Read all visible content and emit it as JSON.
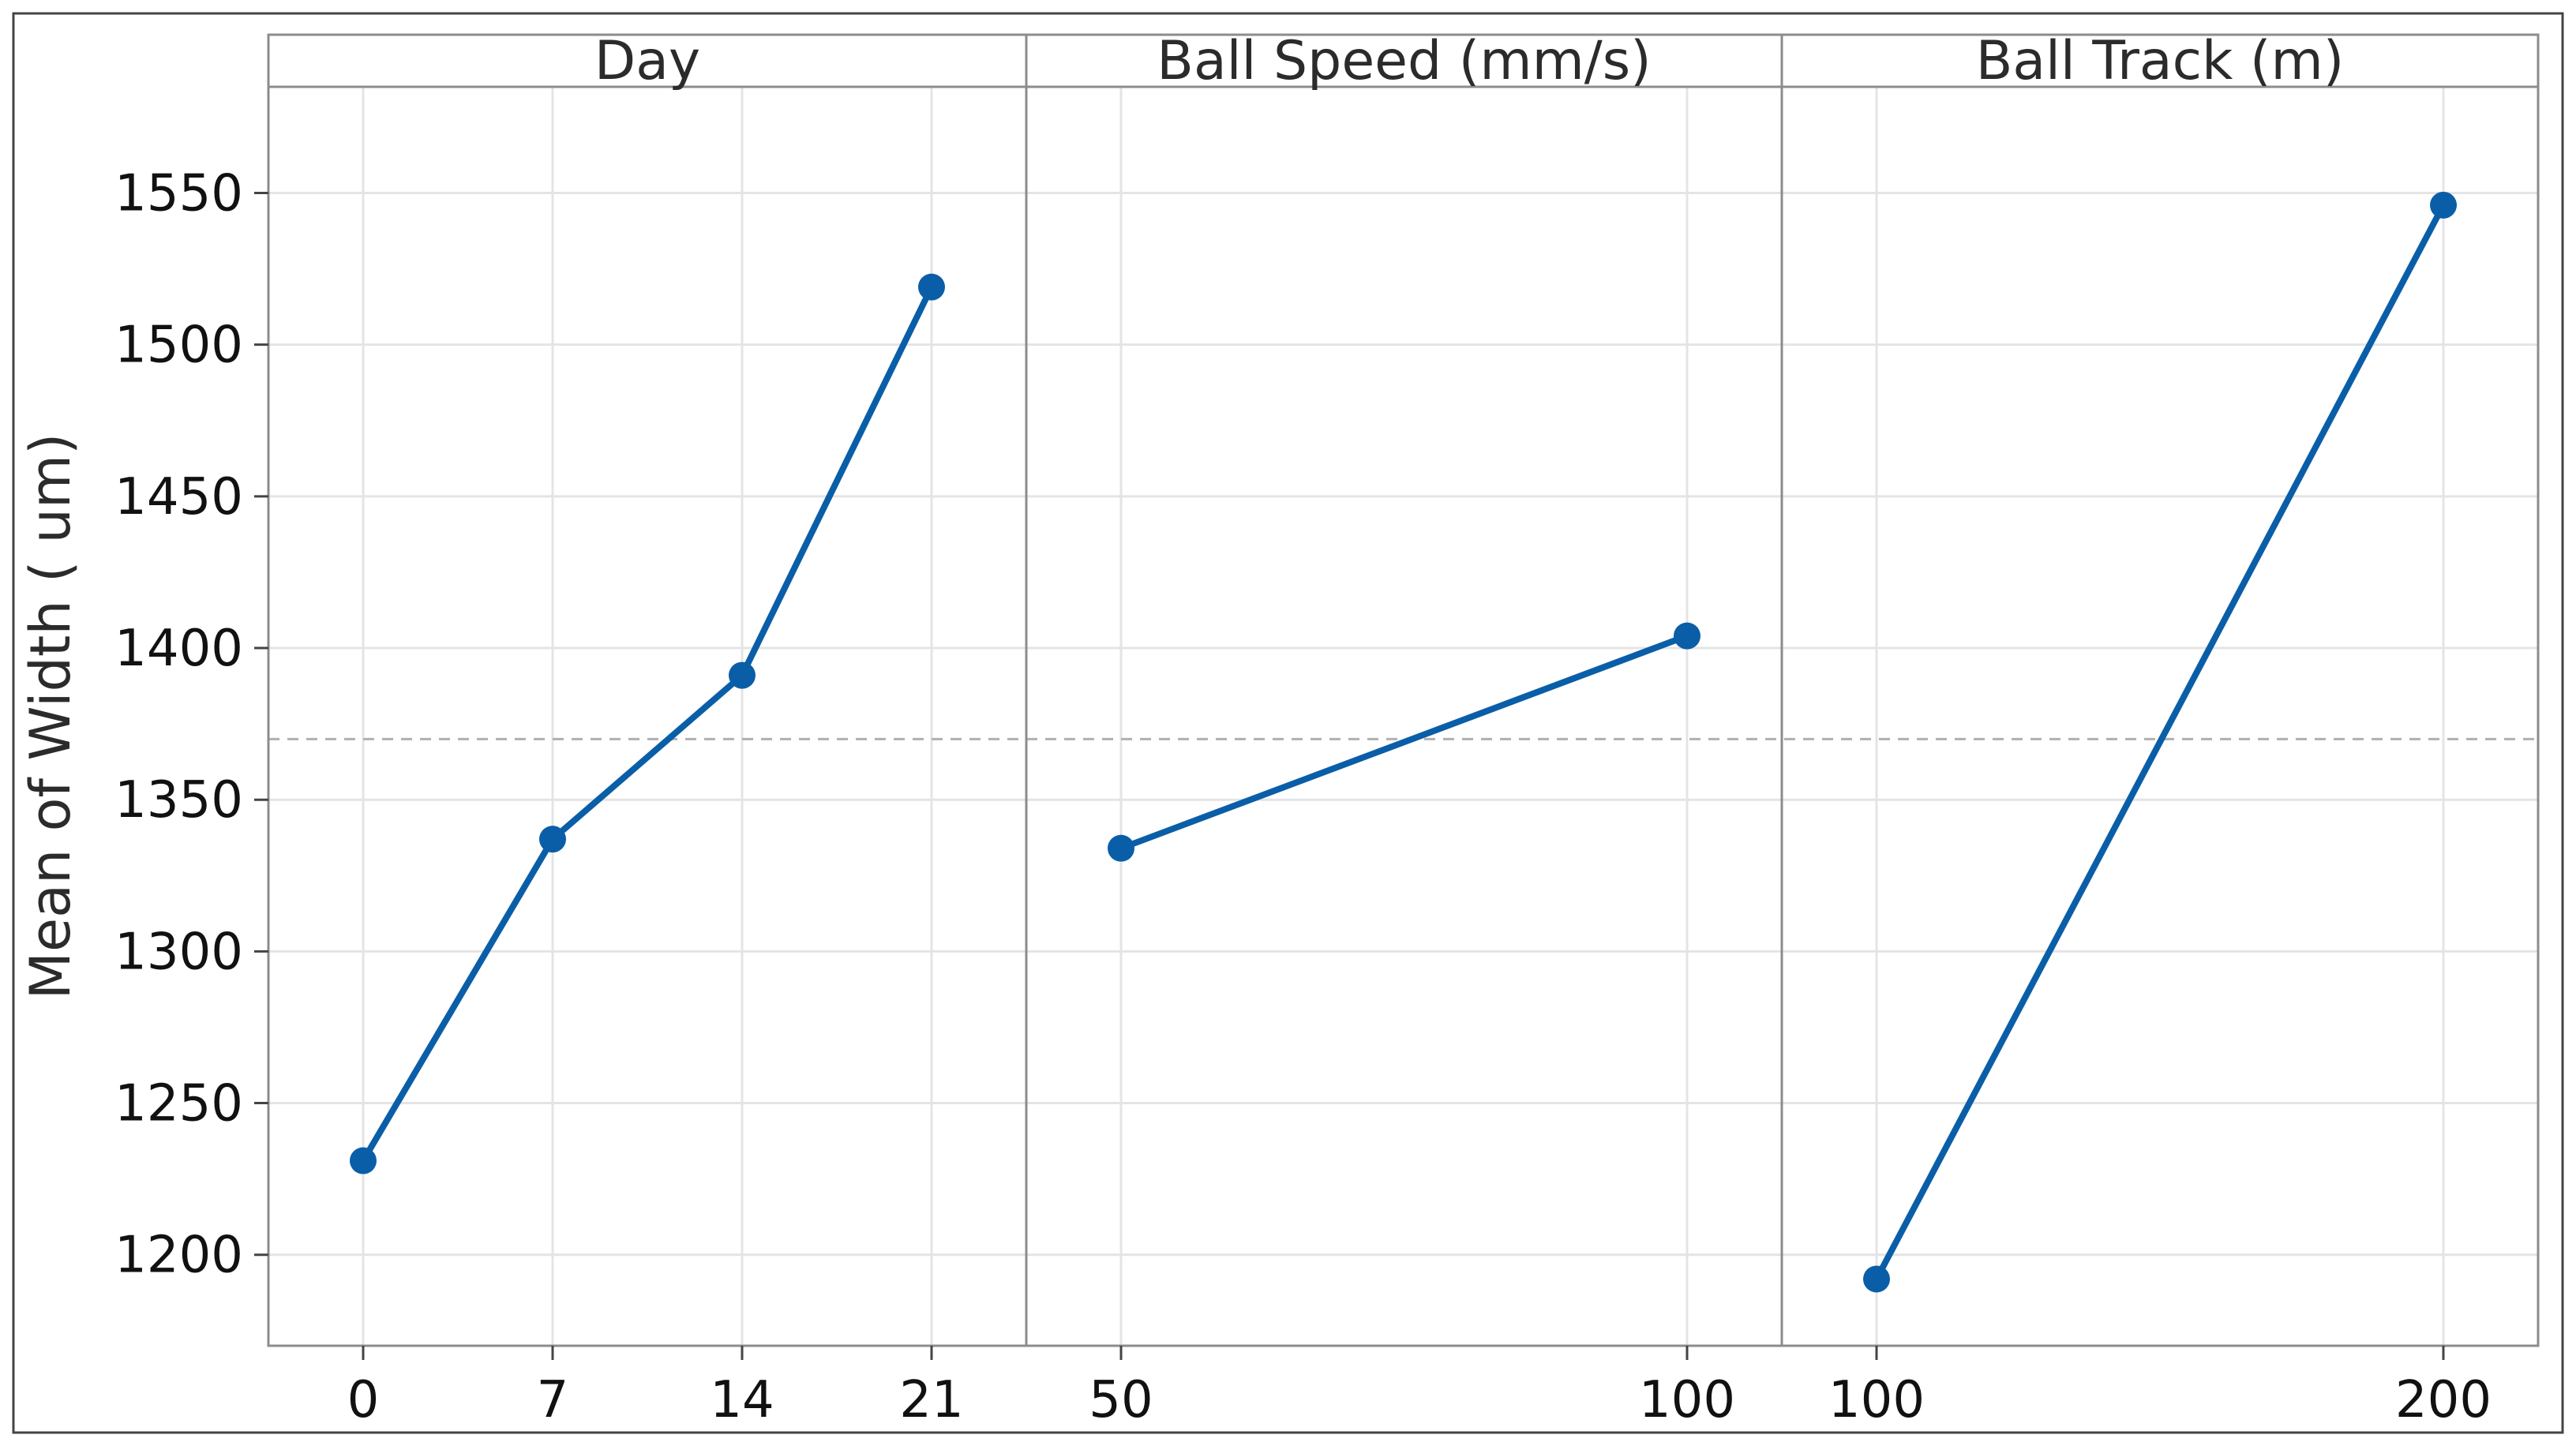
{
  "chart_data": {
    "type": "line",
    "ylabel": "Mean of Width ( um)",
    "ylim": [
      1170,
      1585
    ],
    "yticks": [
      1200,
      1250,
      1300,
      1350,
      1400,
      1450,
      1500,
      1550
    ],
    "grand_mean": 1370,
    "grid": true,
    "colors": {
      "series": "#0A5EA8",
      "grid": "#e4e4e4",
      "frame": "#8c8c8c",
      "reference_line": "#b0b0b0"
    },
    "panels": [
      {
        "title": "Day",
        "categories": [
          "0",
          "7",
          "14",
          "21"
        ],
        "values": [
          1231,
          1337,
          1391,
          1519
        ]
      },
      {
        "title": "Ball Speed (mm/s)",
        "categories": [
          "50",
          "100"
        ],
        "values": [
          1334,
          1404
        ]
      },
      {
        "title": "Ball Track (m)",
        "categories": [
          "100",
          "200"
        ],
        "values": [
          1192,
          1546
        ]
      }
    ]
  }
}
